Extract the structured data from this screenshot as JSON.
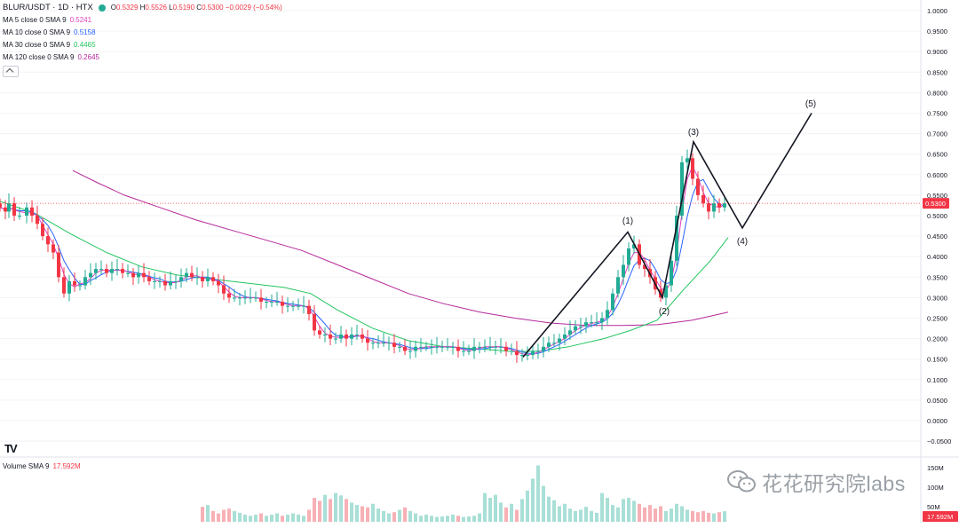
{
  "header": {
    "symbol": "BLUR/USDT · 1D · HTX",
    "ohlc": {
      "open_key": "O",
      "open": "0.5329",
      "high_key": "H",
      "high": "0.5526",
      "low_key": "L",
      "low": "0.5190",
      "close_key": "C",
      "close": "0.5300",
      "change": "−0.0029 (−0.54%)"
    },
    "status_color": "#22ab94"
  },
  "indicators": [
    {
      "label": "MA 5 close 0 SMA 9",
      "value": "0.5241",
      "color": "#e040c0"
    },
    {
      "label": "MA 10 close 0 SMA 9",
      "value": "0.5158",
      "color": "#2962ff"
    },
    {
      "label": "MA 30 close 0 SMA 9",
      "value": "0.4465",
      "color": "#22c55e"
    },
    {
      "label": "MA 120 close 0 SMA 9",
      "value": "0.2645",
      "color": "#b5289a"
    }
  ],
  "volume_legend": {
    "label": "Volume SMA 9",
    "value": "17.592M"
  },
  "price_axis": {
    "ticks": [
      "1.0000",
      "0.9500",
      "0.9000",
      "0.8500",
      "0.8000",
      "0.7500",
      "0.7000",
      "0.6500",
      "0.6000",
      "0.5500",
      "0.5000",
      "0.4500",
      "0.4000",
      "0.3500",
      "0.3000",
      "0.2500",
      "0.2000",
      "0.1500",
      "0.1000",
      "0.0500",
      "0.0000",
      "−0.0500"
    ],
    "current_price": "0.5300",
    "current_price_color": "#f23645"
  },
  "volume_axis": {
    "ticks": [
      "150M",
      "100M",
      "50M"
    ],
    "current": "17.592M"
  },
  "colors": {
    "up": "#22ab94",
    "down": "#f23645",
    "vol_up": "#a8dfd6",
    "vol_down": "#f7b0b5"
  },
  "wave_labels": [
    "(1)",
    "(2)",
    "(3)",
    "(4)",
    "(5)"
  ],
  "watermark": "花花研究院labs",
  "logo": "TV",
  "chart_data": {
    "type": "candlestick",
    "title": "BLUR/USDT · 1D · HTX",
    "ylim": [
      -0.05,
      1.0
    ],
    "volume_ylim": [
      0,
      170
    ],
    "close_path": [
      [
        0,
        0.52
      ],
      [
        6,
        0.51
      ],
      [
        10,
        0.53
      ],
      [
        16,
        0.5
      ],
      [
        22,
        0.5
      ],
      [
        30,
        0.52
      ],
      [
        36,
        0.5
      ],
      [
        42,
        0.48
      ],
      [
        48,
        0.45
      ],
      [
        54,
        0.43
      ],
      [
        60,
        0.41
      ],
      [
        66,
        0.35
      ],
      [
        72,
        0.31
      ],
      [
        78,
        0.34
      ],
      [
        84,
        0.33
      ],
      [
        90,
        0.33
      ],
      [
        96,
        0.35
      ],
      [
        102,
        0.36
      ],
      [
        108,
        0.37
      ],
      [
        114,
        0.37
      ],
      [
        120,
        0.36
      ],
      [
        126,
        0.37
      ],
      [
        132,
        0.37
      ],
      [
        138,
        0.36
      ],
      [
        144,
        0.36
      ],
      [
        150,
        0.35
      ],
      [
        156,
        0.36
      ],
      [
        162,
        0.35
      ],
      [
        168,
        0.34
      ],
      [
        174,
        0.34
      ],
      [
        180,
        0.34
      ],
      [
        186,
        0.33
      ],
      [
        192,
        0.34
      ],
      [
        198,
        0.34
      ],
      [
        204,
        0.35
      ],
      [
        210,
        0.36
      ],
      [
        216,
        0.35
      ],
      [
        222,
        0.35
      ],
      [
        228,
        0.34
      ],
      [
        234,
        0.35
      ],
      [
        240,
        0.34
      ],
      [
        246,
        0.33
      ],
      [
        252,
        0.31
      ],
      [
        258,
        0.3
      ],
      [
        264,
        0.3
      ],
      [
        270,
        0.3
      ],
      [
        276,
        0.3
      ],
      [
        282,
        0.3
      ],
      [
        288,
        0.3
      ],
      [
        294,
        0.29
      ],
      [
        300,
        0.29
      ],
      [
        306,
        0.29
      ],
      [
        312,
        0.29
      ],
      [
        318,
        0.28
      ],
      [
        324,
        0.28
      ],
      [
        330,
        0.28
      ],
      [
        336,
        0.28
      ],
      [
        342,
        0.28
      ],
      [
        348,
        0.26
      ],
      [
        354,
        0.22
      ],
      [
        360,
        0.21
      ],
      [
        366,
        0.21
      ],
      [
        372,
        0.2
      ],
      [
        378,
        0.2
      ],
      [
        384,
        0.21
      ],
      [
        390,
        0.2
      ],
      [
        396,
        0.21
      ],
      [
        402,
        0.21
      ],
      [
        408,
        0.2
      ],
      [
        414,
        0.19
      ],
      [
        420,
        0.19
      ],
      [
        426,
        0.19
      ],
      [
        432,
        0.19
      ],
      [
        438,
        0.19
      ],
      [
        444,
        0.18
      ],
      [
        450,
        0.18
      ],
      [
        456,
        0.17
      ],
      [
        462,
        0.17
      ],
      [
        468,
        0.18
      ],
      [
        474,
        0.18
      ],
      [
        480,
        0.18
      ],
      [
        486,
        0.18
      ],
      [
        492,
        0.18
      ],
      [
        498,
        0.18
      ],
      [
        504,
        0.18
      ],
      [
        510,
        0.18
      ],
      [
        516,
        0.17
      ],
      [
        522,
        0.17
      ],
      [
        528,
        0.17
      ],
      [
        534,
        0.18
      ],
      [
        540,
        0.18
      ],
      [
        546,
        0.18
      ],
      [
        552,
        0.18
      ],
      [
        558,
        0.18
      ],
      [
        564,
        0.18
      ],
      [
        570,
        0.17
      ],
      [
        576,
        0.17
      ],
      [
        582,
        0.16
      ],
      [
        588,
        0.16
      ],
      [
        594,
        0.16
      ],
      [
        600,
        0.17
      ],
      [
        606,
        0.17
      ],
      [
        612,
        0.18
      ],
      [
        618,
        0.19
      ],
      [
        624,
        0.19
      ],
      [
        630,
        0.2
      ],
      [
        636,
        0.21
      ],
      [
        642,
        0.22
      ],
      [
        648,
        0.23
      ],
      [
        654,
        0.23
      ],
      [
        660,
        0.24
      ],
      [
        666,
        0.24
      ],
      [
        672,
        0.24
      ],
      [
        678,
        0.25
      ],
      [
        684,
        0.27
      ],
      [
        690,
        0.31
      ],
      [
        696,
        0.35
      ],
      [
        702,
        0.38
      ],
      [
        708,
        0.42
      ],
      [
        714,
        0.43
      ],
      [
        720,
        0.38
      ],
      [
        726,
        0.37
      ],
      [
        732,
        0.35
      ],
      [
        738,
        0.32
      ],
      [
        744,
        0.3
      ],
      [
        750,
        0.33
      ],
      [
        756,
        0.39
      ],
      [
        762,
        0.5
      ],
      [
        768,
        0.63
      ],
      [
        774,
        0.64
      ],
      [
        780,
        0.59
      ],
      [
        786,
        0.55
      ],
      [
        792,
        0.53
      ],
      [
        798,
        0.51
      ],
      [
        804,
        0.53
      ],
      [
        810,
        0.52
      ],
      [
        816,
        0.53
      ]
    ],
    "moving_averages": [
      {
        "name": "MA 120",
        "path": [
          [
            82,
            0.61
          ],
          [
            110,
            0.58
          ],
          [
            140,
            0.55
          ],
          [
            180,
            0.52
          ],
          [
            220,
            0.49
          ],
          [
            260,
            0.465
          ],
          [
            300,
            0.44
          ],
          [
            340,
            0.415
          ],
          [
            380,
            0.38
          ],
          [
            420,
            0.345
          ],
          [
            460,
            0.31
          ],
          [
            500,
            0.285
          ],
          [
            540,
            0.265
          ],
          [
            580,
            0.25
          ],
          [
            620,
            0.238
          ],
          [
            660,
            0.232
          ],
          [
            700,
            0.232
          ],
          [
            740,
            0.234
          ],
          [
            780,
            0.245
          ],
          [
            820,
            0.2645
          ]
        ]
      },
      {
        "name": "MA 30",
        "path": [
          [
            0,
            0.535
          ],
          [
            40,
            0.505
          ],
          [
            80,
            0.455
          ],
          [
            120,
            0.41
          ],
          [
            160,
            0.375
          ],
          [
            200,
            0.355
          ],
          [
            240,
            0.345
          ],
          [
            280,
            0.335
          ],
          [
            320,
            0.325
          ],
          [
            350,
            0.31
          ],
          [
            380,
            0.27
          ],
          [
            420,
            0.225
          ],
          [
            460,
            0.195
          ],
          [
            500,
            0.18
          ],
          [
            540,
            0.175
          ],
          [
            580,
            0.168
          ],
          [
            610,
            0.17
          ],
          [
            640,
            0.18
          ],
          [
            680,
            0.2
          ],
          [
            710,
            0.22
          ],
          [
            740,
            0.245
          ],
          [
            770,
            0.32
          ],
          [
            800,
            0.39
          ],
          [
            820,
            0.4465
          ]
        ]
      }
    ],
    "wave_path": [
      [
        589,
        0.155
      ],
      [
        707,
        0.46
      ],
      [
        746,
        0.3
      ],
      [
        781,
        0.68
      ],
      [
        836,
        0.47
      ],
      [
        914,
        0.75
      ]
    ],
    "volume": [
      {
        "x": 228,
        "v": 25
      },
      {
        "x": 234,
        "v": 28
      },
      {
        "x": 240,
        "v": 18
      },
      {
        "x": 246,
        "v": 14
      },
      {
        "x": 252,
        "v": 20
      },
      {
        "x": 258,
        "v": 22
      },
      {
        "x": 264,
        "v": 18
      },
      {
        "x": 270,
        "v": 15
      },
      {
        "x": 276,
        "v": 12
      },
      {
        "x": 282,
        "v": 10
      },
      {
        "x": 288,
        "v": 12
      },
      {
        "x": 294,
        "v": 14
      },
      {
        "x": 300,
        "v": 10
      },
      {
        "x": 306,
        "v": 12
      },
      {
        "x": 312,
        "v": 14
      },
      {
        "x": 318,
        "v": 10
      },
      {
        "x": 324,
        "v": 12
      },
      {
        "x": 330,
        "v": 14
      },
      {
        "x": 336,
        "v": 12
      },
      {
        "x": 342,
        "v": 10
      },
      {
        "x": 348,
        "v": 20
      },
      {
        "x": 354,
        "v": 40
      },
      {
        "x": 360,
        "v": 35
      },
      {
        "x": 366,
        "v": 45
      },
      {
        "x": 372,
        "v": 38
      },
      {
        "x": 378,
        "v": 48
      },
      {
        "x": 384,
        "v": 44
      },
      {
        "x": 390,
        "v": 38
      },
      {
        "x": 396,
        "v": 32
      },
      {
        "x": 402,
        "v": 28
      },
      {
        "x": 408,
        "v": 26
      },
      {
        "x": 414,
        "v": 24
      },
      {
        "x": 420,
        "v": 30
      },
      {
        "x": 426,
        "v": 22
      },
      {
        "x": 432,
        "v": 18
      },
      {
        "x": 438,
        "v": 14
      },
      {
        "x": 444,
        "v": 16
      },
      {
        "x": 450,
        "v": 20
      },
      {
        "x": 456,
        "v": 24
      },
      {
        "x": 462,
        "v": 18
      },
      {
        "x": 468,
        "v": 14
      },
      {
        "x": 474,
        "v": 10
      },
      {
        "x": 480,
        "v": 12
      },
      {
        "x": 486,
        "v": 10
      },
      {
        "x": 492,
        "v": 8
      },
      {
        "x": 498,
        "v": 9
      },
      {
        "x": 504,
        "v": 10
      },
      {
        "x": 510,
        "v": 12
      },
      {
        "x": 516,
        "v": 10
      },
      {
        "x": 522,
        "v": 8
      },
      {
        "x": 528,
        "v": 9
      },
      {
        "x": 534,
        "v": 10
      },
      {
        "x": 540,
        "v": 14
      },
      {
        "x": 546,
        "v": 48
      },
      {
        "x": 552,
        "v": 40
      },
      {
        "x": 558,
        "v": 45
      },
      {
        "x": 564,
        "v": 32
      },
      {
        "x": 570,
        "v": 24
      },
      {
        "x": 576,
        "v": 30
      },
      {
        "x": 582,
        "v": 20
      },
      {
        "x": 588,
        "v": 38
      },
      {
        "x": 594,
        "v": 52
      },
      {
        "x": 600,
        "v": 72
      },
      {
        "x": 606,
        "v": 94
      },
      {
        "x": 612,
        "v": 60
      },
      {
        "x": 618,
        "v": 42
      },
      {
        "x": 624,
        "v": 36
      },
      {
        "x": 630,
        "v": 26
      },
      {
        "x": 636,
        "v": 30
      },
      {
        "x": 642,
        "v": 22
      },
      {
        "x": 648,
        "v": 18
      },
      {
        "x": 654,
        "v": 20
      },
      {
        "x": 660,
        "v": 25
      },
      {
        "x": 666,
        "v": 18
      },
      {
        "x": 672,
        "v": 15
      },
      {
        "x": 678,
        "v": 48
      },
      {
        "x": 684,
        "v": 40
      },
      {
        "x": 690,
        "v": 28
      },
      {
        "x": 696,
        "v": 24
      },
      {
        "x": 702,
        "v": 38
      },
      {
        "x": 708,
        "v": 40
      },
      {
        "x": 714,
        "v": 35
      },
      {
        "x": 720,
        "v": 30
      },
      {
        "x": 726,
        "v": 24
      },
      {
        "x": 732,
        "v": 28
      },
      {
        "x": 738,
        "v": 22
      },
      {
        "x": 744,
        "v": 26
      },
      {
        "x": 750,
        "v": 18
      },
      {
        "x": 756,
        "v": 22
      },
      {
        "x": 762,
        "v": 30
      },
      {
        "x": 768,
        "v": 26
      },
      {
        "x": 774,
        "v": 20
      },
      {
        "x": 780,
        "v": 18
      },
      {
        "x": 786,
        "v": 16
      },
      {
        "x": 792,
        "v": 18
      },
      {
        "x": 798,
        "v": 15
      },
      {
        "x": 804,
        "v": 14
      },
      {
        "x": 810,
        "v": 16
      },
      {
        "x": 816,
        "v": 17.592
      }
    ]
  }
}
